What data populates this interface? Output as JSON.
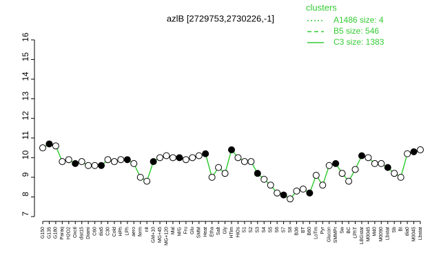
{
  "chart_data": {
    "type": "line",
    "title": "azlB [2729753,2730226,-1]",
    "categories": [
      "G150",
      "G135",
      "G180",
      "Paraq",
      "H2O2",
      "Oxctl",
      "dist15",
      "Diami",
      "C60",
      "dia5",
      "C30",
      "Cold",
      "HPh",
      "LPh",
      "aero",
      "ferm",
      "nit",
      "GM+10",
      "MG+45",
      "MG+120",
      "Mal",
      "M/G",
      "Fru",
      "Glu",
      "SMM",
      "Heat",
      "Etha",
      "Salt",
      "Gly",
      "HTim",
      "HiOs",
      "S1",
      "S2",
      "S3",
      "S4",
      "S5",
      "S6",
      "S7",
      "S8",
      "B36",
      "BT",
      "B60",
      "LoTm",
      "Pyr",
      "Glucon",
      "SMMPr",
      "Sw",
      "BC",
      "LPhT",
      "LBGstat",
      "M0045",
      "M40",
      "M0090",
      "Lbstat",
      "Sb",
      "BI",
      "dia0",
      "M0045",
      "Lbstat"
    ],
    "series": [
      {
        "name": "C3 size: 1383",
        "color": "#33cc33",
        "values": [
          10.5,
          10.7,
          10.6,
          9.8,
          9.9,
          9.7,
          9.8,
          9.6,
          9.6,
          9.6,
          9.9,
          9.8,
          9.9,
          9.9,
          9.7,
          9.0,
          8.8,
          9.8,
          10.0,
          10.1,
          10.0,
          10.0,
          9.9,
          10.0,
          10.1,
          10.2,
          9.0,
          9.5,
          9.2,
          10.4,
          10.0,
          9.8,
          9.8,
          9.2,
          8.9,
          8.6,
          8.2,
          8.1,
          7.9,
          8.3,
          8.4,
          8.2,
          9.1,
          8.6,
          9.6,
          9.7,
          9.2,
          8.8,
          9.4,
          10.1,
          10.0,
          9.7,
          9.7,
          9.5,
          9.2,
          9.0,
          10.2,
          10.3,
          10.4
        ]
      }
    ],
    "ylim": [
      7,
      16
    ],
    "yticks": [
      7,
      8,
      9,
      10,
      11,
      12,
      13,
      14,
      15,
      16
    ],
    "legend": {
      "title": "clusters",
      "color": "#33cc33",
      "entries": [
        {
          "name": "A1486 size: 4",
          "dash": "2,3"
        },
        {
          "name": "B5 size: 546",
          "dash": "6,4"
        },
        {
          "name": "C3 size: 1383",
          "dash": "none"
        }
      ]
    }
  }
}
